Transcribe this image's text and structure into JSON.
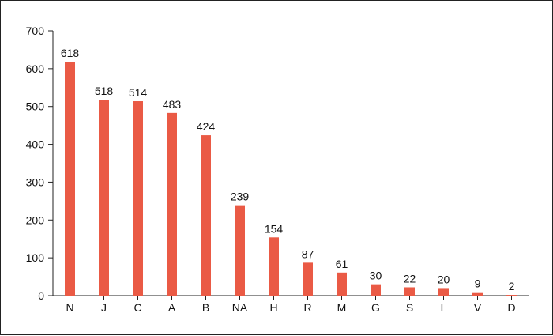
{
  "chart_data": {
    "type": "bar",
    "title": "",
    "xlabel": "",
    "ylabel": "",
    "categories": [
      "N",
      "J",
      "C",
      "A",
      "B",
      "NA",
      "H",
      "R",
      "M",
      "G",
      "S",
      "L",
      "V",
      "D"
    ],
    "values": [
      618,
      518,
      514,
      483,
      424,
      239,
      154,
      87,
      61,
      30,
      22,
      20,
      9,
      2
    ],
    "data_labels": [
      "618",
      "518",
      "514",
      "483",
      "424",
      "239",
      "154",
      "87",
      "61",
      "30",
      "22",
      "20",
      "9",
      "2"
    ],
    "ylim": [
      0,
      700
    ],
    "yticks": [
      0,
      100,
      200,
      300,
      400,
      500,
      600,
      700
    ],
    "ytick_labels": [
      "0",
      "100",
      "200",
      "300",
      "400",
      "500",
      "600",
      "700"
    ],
    "grid": false,
    "legend": "none",
    "bar_color": "#EA5A45"
  }
}
